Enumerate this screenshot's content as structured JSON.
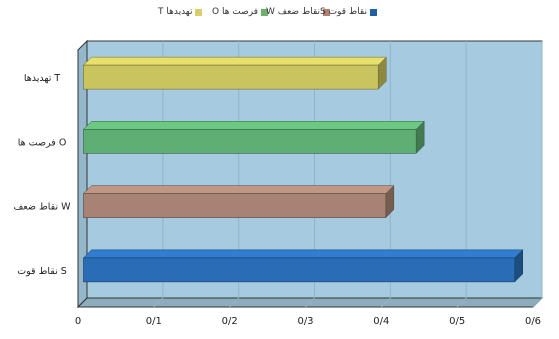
{
  "chart_data": {
    "type": "bar",
    "orientation": "horizontal",
    "three_d": true,
    "categories": [
      "تهدیدها T",
      "فرصت ها O",
      "نقاط ضعف W",
      "نقاط قوت S"
    ],
    "values": [
      0.39,
      0.44,
      0.4,
      0.57
    ],
    "xlim": [
      0,
      0.6
    ],
    "xticks": [
      "0",
      "0/1",
      "0/2",
      "0/3",
      "0/4",
      "0/5",
      "0/6"
    ],
    "grid": true,
    "legend_position": "top",
    "legend": [
      {
        "label": "نقاط قوت S",
        "color": "#1f5fa8"
      },
      {
        "label": "نقاط ضعف W",
        "color": "#b07f72"
      },
      {
        "label": "فرصت ها O",
        "color": "#6cb06c"
      },
      {
        "label": "تهدیدها T",
        "color": "#d8cf6a"
      }
    ],
    "colors": [
      "#c9c45e",
      "#5fae73",
      "#a88373",
      "#2a6db6"
    ],
    "plot_background": "#a6cbe0",
    "title": "",
    "xlabel": "",
    "ylabel": ""
  }
}
